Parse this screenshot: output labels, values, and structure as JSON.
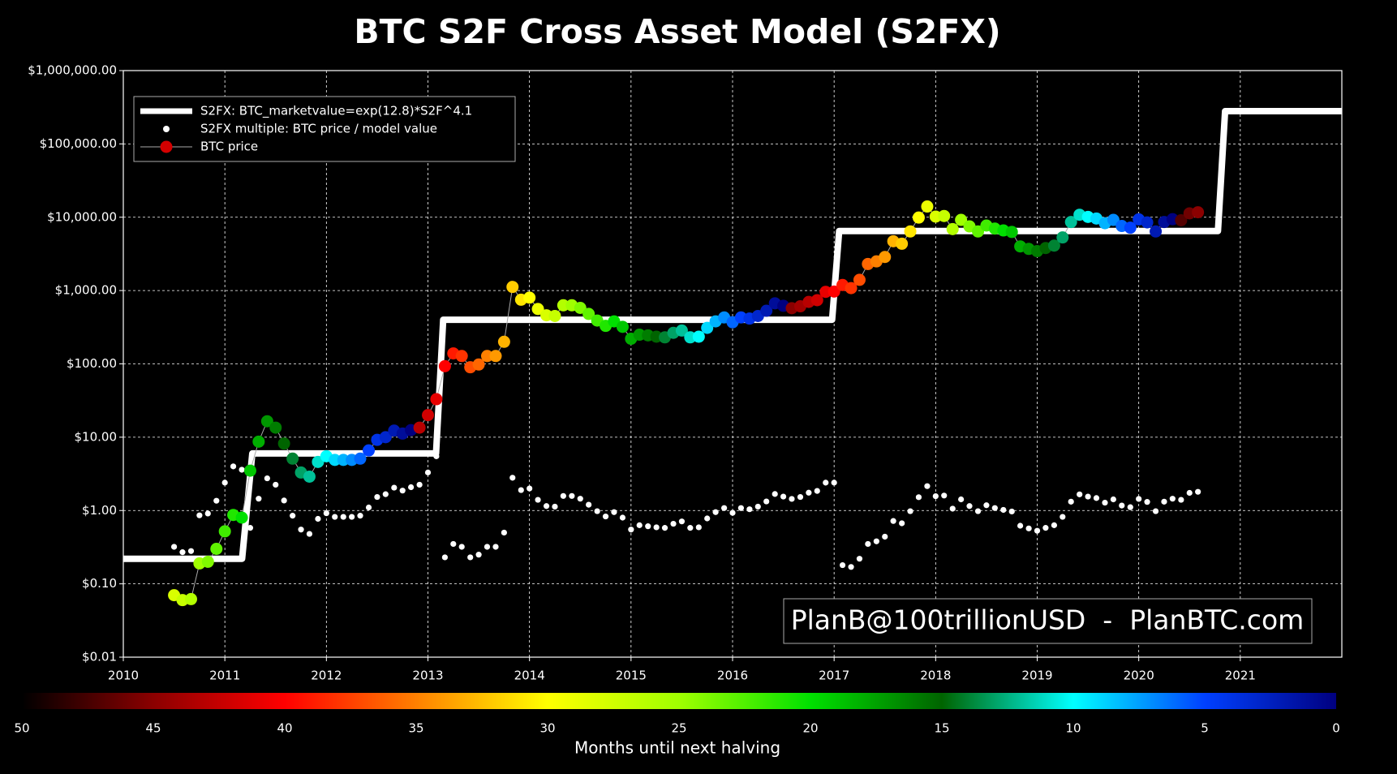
{
  "chart_data": {
    "type": "s2fx",
    "title": "BTC S2F Cross Asset Model (S2FX)",
    "yscale": "log",
    "grid": true,
    "legend": "upper left",
    "ylim": [
      0.01,
      1000000
    ],
    "yticks": [
      {
        "value": 0.01,
        "label": "$0.01"
      },
      {
        "value": 0.1,
        "label": "$0.10"
      },
      {
        "value": 1,
        "label": "$1.00"
      },
      {
        "value": 10,
        "label": "$10.00"
      },
      {
        "value": 100,
        "label": "$100.00"
      },
      {
        "value": 1000,
        "label": "$1,000.00"
      },
      {
        "value": 10000,
        "label": "$10,000.00"
      },
      {
        "value": 100000,
        "label": "$100,000.00"
      },
      {
        "value": 1000000,
        "label": "$1,000,000.00"
      }
    ],
    "xlim": [
      2010,
      2022
    ],
    "xticks": [
      2010,
      2011,
      2012,
      2013,
      2014,
      2015,
      2016,
      2017,
      2018,
      2019,
      2020,
      2021
    ],
    "x": [
      2010.5,
      2010.583,
      2010.667,
      2010.75,
      2010.833,
      2010.917,
      2011,
      2011.083,
      2011.167,
      2011.25,
      2011.333,
      2011.417,
      2011.5,
      2011.583,
      2011.667,
      2011.75,
      2011.833,
      2011.917,
      2012,
      2012.083,
      2012.167,
      2012.25,
      2012.333,
      2012.417,
      2012.5,
      2012.583,
      2012.667,
      2012.75,
      2012.833,
      2012.917,
      2013,
      2013.083,
      2013.167,
      2013.25,
      2013.333,
      2013.417,
      2013.5,
      2013.583,
      2013.667,
      2013.75,
      2013.833,
      2013.917,
      2014,
      2014.083,
      2014.167,
      2014.25,
      2014.333,
      2014.417,
      2014.5,
      2014.583,
      2014.667,
      2014.75,
      2014.833,
      2014.917,
      2015,
      2015.083,
      2015.167,
      2015.25,
      2015.333,
      2015.417,
      2015.5,
      2015.583,
      2015.667,
      2015.75,
      2015.833,
      2015.917,
      2016,
      2016.083,
      2016.167,
      2016.25,
      2016.333,
      2016.417,
      2016.5,
      2016.583,
      2016.667,
      2016.75,
      2016.833,
      2016.917,
      2017,
      2017.083,
      2017.167,
      2017.25,
      2017.333,
      2017.417,
      2017.5,
      2017.583,
      2017.667,
      2017.75,
      2017.833,
      2017.917,
      2018,
      2018.083,
      2018.167,
      2018.25,
      2018.333,
      2018.417,
      2018.5,
      2018.583,
      2018.667,
      2018.75,
      2018.833,
      2018.917,
      2019,
      2019.083,
      2019.167,
      2019.25,
      2019.333,
      2019.417,
      2019.5,
      2019.583,
      2019.667,
      2019.75,
      2019.833,
      2019.917,
      2020,
      2020.083,
      2020.167,
      2020.25,
      2020.333,
      2020.417,
      2020.5,
      2020.583
    ],
    "series": [
      {
        "name": "S2FX: BTC_marketvalue=exp(12.8)*S2F^4.1",
        "color": "#ffffff",
        "style": "line",
        "x": [
          2010,
          2011.17,
          2011.27,
          2013.08,
          2013.15,
          2016.98,
          2017.05,
          2020.78,
          2020.85,
          2022
        ],
        "values": [
          0.22,
          0.22,
          6,
          6,
          400,
          400,
          6500,
          6500,
          280000,
          280000
        ]
      },
      {
        "name": "S2FX multiple: BTC price / model value",
        "color": "#ffffff",
        "style": "dots",
        "values": [
          0.32,
          0.27,
          0.28,
          0.86,
          0.91,
          1.36,
          2.4,
          4.0,
          3.6,
          0.58,
          1.45,
          2.75,
          2.25,
          1.37,
          0.85,
          0.55,
          0.48,
          0.77,
          0.92,
          0.82,
          0.82,
          0.82,
          0.85,
          1.1,
          1.53,
          1.67,
          2.05,
          1.87,
          2.08,
          2.25,
          3.3,
          5.5,
          0.23,
          0.35,
          0.32,
          0.23,
          0.25,
          0.32,
          0.32,
          0.5,
          2.8,
          1.9,
          2.0,
          1.4,
          1.15,
          1.13,
          1.58,
          1.58,
          1.45,
          1.2,
          0.98,
          0.83,
          0.95,
          0.8,
          0.55,
          0.63,
          0.61,
          0.59,
          0.58,
          0.66,
          0.71,
          0.58,
          0.59,
          0.78,
          0.95,
          1.08,
          0.93,
          1.08,
          1.04,
          1.13,
          1.33,
          1.68,
          1.55,
          1.44,
          1.53,
          1.75,
          1.85,
          2.4,
          2.4,
          0.18,
          0.17,
          0.22,
          0.35,
          0.38,
          0.44,
          0.72,
          0.67,
          0.98,
          1.52,
          2.15,
          1.57,
          1.6,
          1.06,
          1.42,
          1.15,
          0.98,
          1.18,
          1.08,
          1.02,
          0.97,
          0.62,
          0.57,
          0.53,
          0.58,
          0.63,
          0.82,
          1.32,
          1.66,
          1.55,
          1.48,
          1.28,
          1.42,
          1.17,
          1.11,
          1.44,
          1.31,
          0.98,
          1.32,
          1.45,
          1.4,
          1.74,
          1.8
        ]
      },
      {
        "name": "BTC price",
        "color": "#d40000",
        "line_color": "#aaaaaa",
        "style": "colored",
        "values": [
          0.07,
          0.06,
          0.062,
          0.19,
          0.2,
          0.3,
          0.52,
          0.87,
          0.8,
          3.5,
          8.7,
          16.5,
          13.5,
          8.2,
          5.1,
          3.3,
          2.9,
          4.6,
          5.5,
          4.9,
          4.9,
          4.9,
          5.1,
          6.6,
          9.2,
          10,
          12.3,
          11.2,
          12.5,
          13.5,
          20,
          33,
          93,
          139,
          128,
          90,
          98,
          128,
          128,
          200,
          1120,
          750,
          800,
          560,
          460,
          450,
          630,
          630,
          580,
          480,
          390,
          330,
          380,
          320,
          220,
          250,
          245,
          235,
          230,
          265,
          285,
          230,
          235,
          310,
          380,
          430,
          370,
          430,
          415,
          450,
          530,
          670,
          620,
          575,
          610,
          700,
          740,
          960,
          970,
          1190,
          1080,
          1400,
          2300,
          2500,
          2870,
          4700,
          4350,
          6400,
          9900,
          14000,
          10200,
          10400,
          6900,
          9200,
          7500,
          6400,
          7700,
          7000,
          6600,
          6300,
          4000,
          3700,
          3450,
          3800,
          4100,
          5300,
          8600,
          10800,
          10100,
          9600,
          8300,
          9200,
          7600,
          7200,
          9350,
          8500,
          6400,
          8600,
          9400,
          9100,
          11300,
          11700
        ],
        "color_values": [
          28,
          27,
          26,
          25,
          24,
          23,
          22,
          21,
          20,
          19,
          18,
          17,
          16,
          15,
          14,
          13,
          12,
          11,
          10,
          9,
          8,
          7,
          6,
          5,
          4,
          3,
          2,
          1,
          0,
          43,
          42,
          41,
          40,
          39,
          38,
          37,
          36,
          35,
          34,
          33,
          32,
          31,
          30,
          29,
          28,
          27,
          26,
          25,
          24,
          23,
          22,
          21,
          20,
          19,
          18,
          17,
          16,
          15,
          14,
          13,
          12,
          11,
          10,
          9,
          8,
          7,
          6,
          5,
          4,
          3,
          2,
          1,
          0,
          45,
          44,
          43,
          42,
          41,
          40,
          39,
          38,
          37,
          36,
          35,
          34,
          33,
          32,
          31,
          30,
          29,
          28,
          27,
          26,
          25,
          24,
          23,
          22,
          21,
          20,
          19,
          18,
          17,
          16,
          15,
          14,
          13,
          12,
          11,
          10,
          9,
          8,
          7,
          6,
          5,
          4,
          3,
          2,
          1,
          0,
          47,
          46,
          45
        ]
      }
    ],
    "colorbar": {
      "label": "Months until next halving",
      "clim": [
        50,
        0
      ],
      "ticks": [
        50,
        45,
        40,
        35,
        30,
        25,
        20,
        15,
        10,
        5,
        0
      ],
      "colormap": [
        {
          "value": 50,
          "color": "#000000"
        },
        {
          "value": 45,
          "color": "#8b0000"
        },
        {
          "value": 40,
          "color": "#ff0000"
        },
        {
          "value": 35,
          "color": "#ff8000"
        },
        {
          "value": 30,
          "color": "#ffff00"
        },
        {
          "value": 25,
          "color": "#a0ff00"
        },
        {
          "value": 20,
          "color": "#00e000"
        },
        {
          "value": 15,
          "color": "#006400"
        },
        {
          "value": 10,
          "color": "#00ffff"
        },
        {
          "value": 5,
          "color": "#0040ff"
        },
        {
          "value": 0,
          "color": "#000080"
        }
      ]
    },
    "annotation": "PlanB@100trillionUSD  -  PlanBTC.com"
  }
}
